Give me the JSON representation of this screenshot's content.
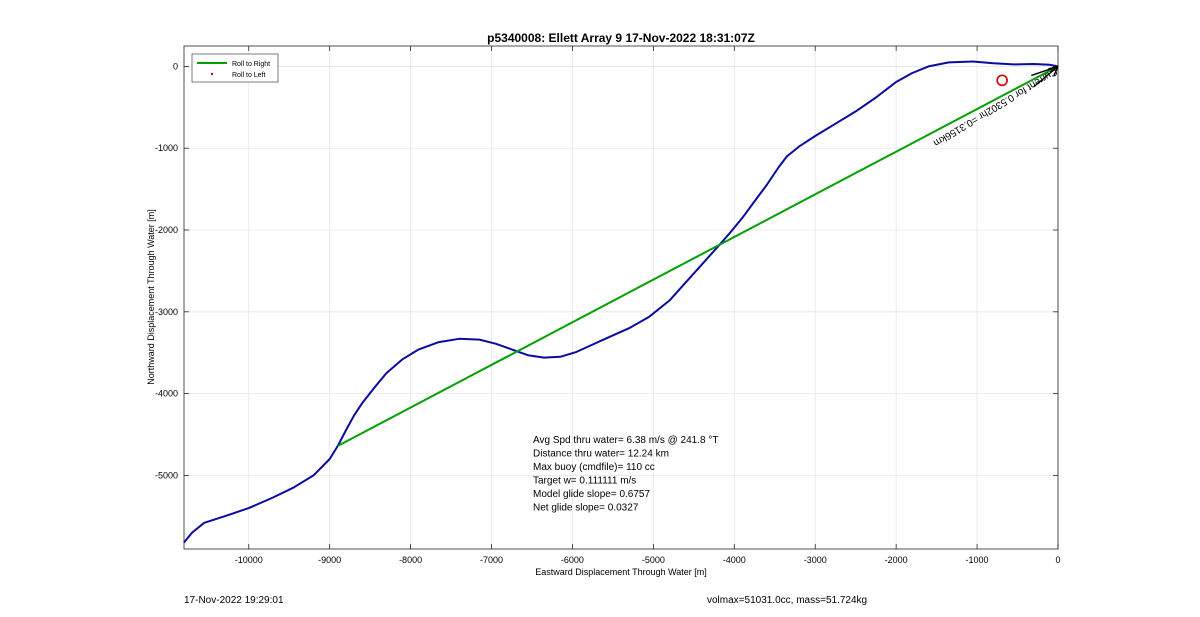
{
  "chart_data": {
    "type": "line",
    "title": "p5340008: Ellett Array 9 17-Nov-2022 18:31:07Z",
    "xlabel": "Eastward Displacement Through Water [m]",
    "ylabel": "Northward Displacement Through Water [m]",
    "xlim": [
      -10800,
      0
    ],
    "ylim": [
      -5900,
      250
    ],
    "xticks": [
      -10000,
      -9000,
      -8000,
      -7000,
      -6000,
      -5000,
      -4000,
      -3000,
      -2000,
      -1000,
      0
    ],
    "yticks": [
      0,
      -1000,
      -2000,
      -3000,
      -4000,
      -5000
    ],
    "grid": true,
    "legend_position": "top-left",
    "legend": [
      {
        "label": "Roll to Right",
        "color": "#00a000",
        "style": "line"
      },
      {
        "label": "Roll to Left",
        "color": "#d00000",
        "style": "dot"
      }
    ],
    "series": [
      {
        "color": "#0a0aa0",
        "x": [
          -10800,
          -10700,
          -10550,
          -10300,
          -10000,
          -9700,
          -9450,
          -9200,
          -9000,
          -8900,
          -8800,
          -8700,
          -8600,
          -8450,
          -8300,
          -8100,
          -7900,
          -7650,
          -7400,
          -7150,
          -6950,
          -6750,
          -6550,
          -6350,
          -6150,
          -5950,
          -5750,
          -5550,
          -5300,
          -5050,
          -4800,
          -4600,
          -4400,
          -4200,
          -4050,
          -3900,
          -3750,
          -3600,
          -3450,
          -3350,
          -3200,
          -3000,
          -2750,
          -2500,
          -2250,
          -2000,
          -1800,
          -1600,
          -1350,
          -1050,
          -800,
          -550,
          -300,
          -100,
          0
        ],
        "y": [
          -5820,
          -5700,
          -5580,
          -5500,
          -5400,
          -5270,
          -5150,
          -5000,
          -4800,
          -4640,
          -4450,
          -4270,
          -4120,
          -3930,
          -3750,
          -3580,
          -3460,
          -3370,
          -3330,
          -3340,
          -3390,
          -3460,
          -3530,
          -3560,
          -3550,
          -3490,
          -3400,
          -3310,
          -3200,
          -3060,
          -2860,
          -2640,
          -2420,
          -2200,
          -2030,
          -1850,
          -1650,
          -1450,
          -1230,
          -1100,
          -980,
          -850,
          -700,
          -550,
          -380,
          -190,
          -80,
          0,
          50,
          60,
          40,
          25,
          30,
          20,
          0
        ]
      },
      {
        "color": "#00a000",
        "x": [
          -8900,
          0
        ],
        "y": [
          -4640,
          0
        ]
      }
    ],
    "markers": [
      {
        "type": "circle",
        "x": -690,
        "y": -170,
        "color": "#d00000"
      }
    ],
    "arrow": {
      "from": [
        -300,
        -250
      ],
      "to": [
        0,
        0
      ],
      "color": "#000000"
    },
    "current_label": "Current for 0.5302hr =0.3156km",
    "stats": [
      "Avg Spd thru water=  6.38 m/s @ 241.8 °T",
      "Distance thru water= 12.24 km",
      "Max buoy (cmdfile)= 110 cc",
      "Target w= 0.111111 m/s",
      "Model glide slope= 0.6757",
      "Net glide slope= 0.0327"
    ]
  },
  "footer": {
    "timestamp": "17-Nov-2022 19:29:01",
    "volmass": "volmax=51031.0cc, mass=51.724kg"
  }
}
